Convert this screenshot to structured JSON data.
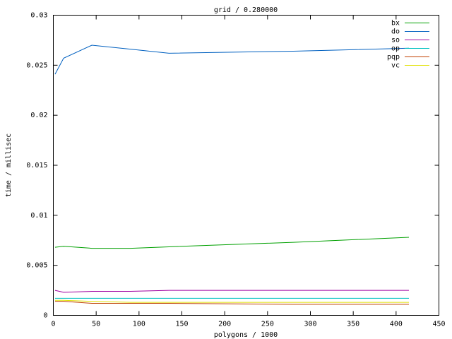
{
  "chart_data": {
    "type": "line",
    "title": "grid / 0.280000",
    "x_label": "polygons / 1000",
    "y_label": "time / millisec",
    "x": [
      2,
      12,
      45,
      90,
      135,
      280,
      415
    ],
    "series": [
      {
        "name": "bx",
        "color": "#00a000",
        "values": [
          0.0068,
          0.0069,
          0.0067,
          0.0067,
          0.00685,
          0.0073,
          0.0078
        ]
      },
      {
        "name": "do",
        "color": "#0060c0",
        "values": [
          0.0241,
          0.0257,
          0.027,
          0.0266,
          0.0262,
          0.0264,
          0.0267
        ]
      },
      {
        "name": "so",
        "color": "#a000a0",
        "values": [
          0.0025,
          0.0023,
          0.0024,
          0.0024,
          0.0025,
          0.0025,
          0.0025
        ]
      },
      {
        "name": "op",
        "color": "#00c0c0",
        "values": [
          0.0017,
          0.0017,
          0.0017,
          0.0017,
          0.0017,
          0.0017,
          0.0017
        ]
      },
      {
        "name": "pqp",
        "color": "#c04000",
        "values": [
          0.0014,
          0.0014,
          0.0012,
          0.0012,
          0.0012,
          0.0011,
          0.0011
        ]
      },
      {
        "name": "vc",
        "color": "#e0e000",
        "values": [
          0.0015,
          0.0015,
          0.0014,
          0.0013,
          0.0013,
          0.0013,
          0.0013
        ]
      }
    ],
    "xlim": [
      0,
      450
    ],
    "xticks": [
      0,
      50,
      100,
      150,
      200,
      250,
      300,
      350,
      400,
      450
    ],
    "ylim": [
      0,
      0.03
    ],
    "yticks": [
      0,
      0.005,
      0.01,
      0.015,
      0.02,
      0.025,
      0.03
    ],
    "grid": false,
    "legend": "top-right"
  }
}
